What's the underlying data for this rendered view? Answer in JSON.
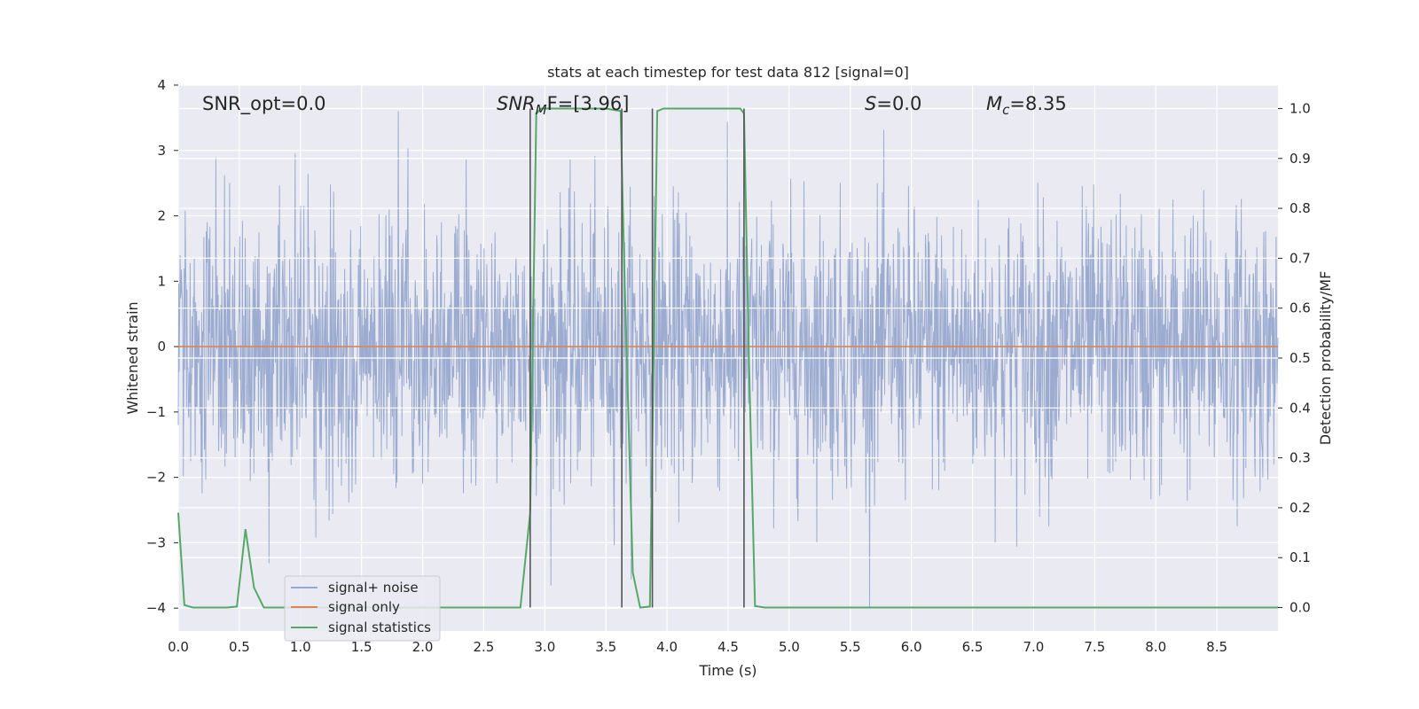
{
  "chart_data": {
    "type": "line",
    "title": "stats at each timestep for test data 812 [signal=0]",
    "xlabel": "Time (s)",
    "ylabel": "Whitened strain",
    "ylabel_right": "Detection probability/MF",
    "xlim": [
      0.0,
      9.0
    ],
    "ylim": [
      -4.35,
      4.0
    ],
    "ylim_right": [
      -0.047,
      1.047
    ],
    "x_ticks": [
      0.0,
      0.5,
      1.0,
      1.5,
      2.0,
      2.5,
      3.0,
      3.5,
      4.0,
      4.5,
      5.0,
      5.5,
      6.0,
      6.5,
      7.0,
      7.5,
      8.0,
      8.5
    ],
    "x_tick_labels": [
      "0.0",
      "0.5",
      "1.0",
      "1.5",
      "2.0",
      "2.5",
      "3.0",
      "3.5",
      "4.0",
      "4.5",
      "5.0",
      "5.5",
      "6.0",
      "6.5",
      "7.0",
      "7.5",
      "8.0",
      "8.5"
    ],
    "y_ticks": [
      4,
      3,
      2,
      1,
      0,
      -1,
      -2,
      -3,
      -4
    ],
    "y_tick_labels": [
      "4",
      "3",
      "2",
      "1",
      "0",
      "−1",
      "−2",
      "−3",
      "−4"
    ],
    "y_right_ticks": [
      1.0,
      0.9,
      0.8,
      0.7,
      0.6,
      0.5,
      0.4,
      0.3,
      0.2,
      0.1,
      0.0
    ],
    "y_right_tick_labels": [
      "1.0",
      "0.9",
      "0.8",
      "0.7",
      "0.6",
      "0.5",
      "0.4",
      "0.3",
      "0.2",
      "0.1",
      "0.0"
    ],
    "grid": true,
    "legend_position": "lower-left",
    "annotations": {
      "snr_opt": "SNR_opt=0.0",
      "snr_mf_name": "SNR",
      "snr_mf_sub": "M",
      "snr_mf_rest": "F=[3.96]",
      "s_name": "S",
      "s_rest": "=0.0",
      "mc_name": "M",
      "mc_sub": "c",
      "mc_rest": "=8.35"
    },
    "series": [
      {
        "name": "signal+ noise",
        "color": "#98a9cf",
        "axis": "left",
        "description_values": "whitened noise samples, roughly gaussian with unit variance, spanning -4 to 3.6"
      },
      {
        "name": "signal only",
        "color": "#dd8452",
        "axis": "left",
        "x": [
          0.0,
          9.0
        ],
        "y": [
          0.0,
          0.0
        ]
      },
      {
        "name": "signal statistics",
        "color": "#55a868",
        "axis": "right",
        "x": [
          0.0,
          0.05,
          0.12,
          0.2,
          0.3,
          0.4,
          0.48,
          0.55,
          0.62,
          0.7,
          0.8,
          1.0,
          2.0,
          2.5,
          2.8,
          2.88,
          2.93,
          2.97,
          3.05,
          3.5,
          3.62,
          3.65,
          3.72,
          3.78,
          3.86,
          3.92,
          3.97,
          4.1,
          4.5,
          4.6,
          4.63,
          4.67,
          4.72,
          4.8,
          5.0,
          6.0,
          7.0,
          8.0,
          9.0
        ],
        "y": [
          0.19,
          0.005,
          0.0,
          0.0,
          0.0,
          0.0,
          0.002,
          0.157,
          0.04,
          0.0,
          0.0,
          0.0,
          0.0,
          0.0,
          0.0,
          0.19,
          0.99,
          1.0,
          1.0,
          1.0,
          0.995,
          0.68,
          0.07,
          0.0,
          0.002,
          0.995,
          1.0,
          1.0,
          1.0,
          1.0,
          0.99,
          0.5,
          0.003,
          0.0,
          0.0,
          0.0,
          0.0,
          0.0,
          0.0
        ]
      }
    ],
    "vertical_lines": {
      "color": "#555555",
      "x": [
        2.88,
        3.63,
        3.88,
        4.63
      ],
      "y_range_right": [
        0.0,
        1.0
      ]
    }
  }
}
